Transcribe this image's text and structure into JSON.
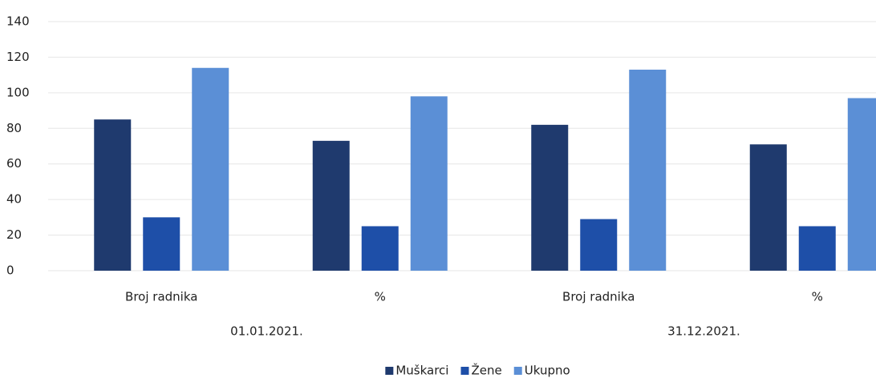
{
  "chart_data": {
    "type": "bar",
    "categories": [
      "Broj radnika",
      "%",
      "Broj radnika",
      "%"
    ],
    "category_groups": [
      "01.01.2021.",
      "31.12.2021."
    ],
    "series": [
      {
        "name": "Muškarci",
        "color": "#1f3a6e",
        "values": [
          85,
          73,
          82,
          71
        ]
      },
      {
        "name": "Žene",
        "color": "#1e4fa8",
        "values": [
          30,
          25,
          29,
          25
        ]
      },
      {
        "name": "Ukupno",
        "color": "#5b8fd6",
        "values": [
          114,
          98,
          113,
          97
        ]
      }
    ],
    "ylim": [
      0,
      140
    ],
    "yticks": [
      0,
      20,
      40,
      60,
      80,
      100,
      120,
      140
    ],
    "grid": true,
    "legend": "bottom"
  }
}
